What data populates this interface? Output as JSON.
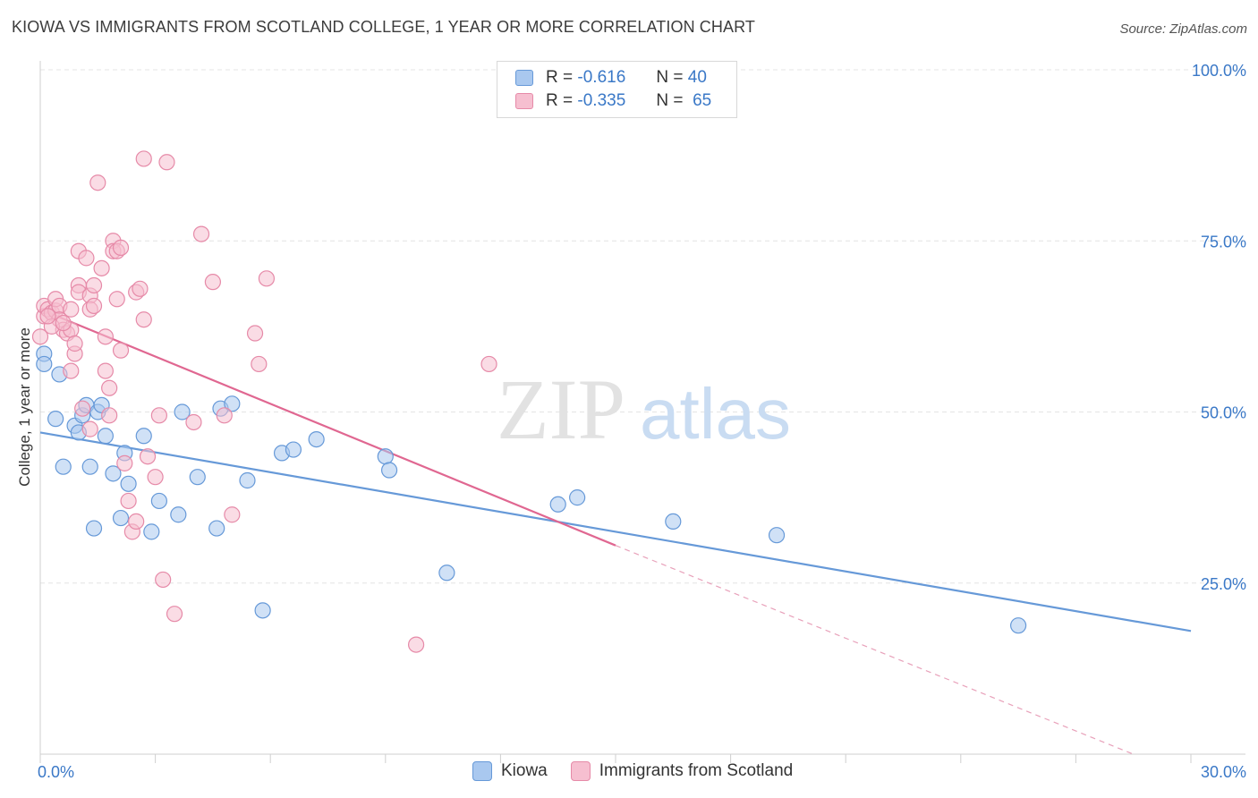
{
  "title": "KIOWA VS IMMIGRANTS FROM SCOTLAND COLLEGE, 1 YEAR OR MORE CORRELATION CHART",
  "source": "Source: ZipAtlas.com",
  "watermark": {
    "zip": "ZIP",
    "atlas": "atlas"
  },
  "legend": {
    "r_label": "R =",
    "n_label": "N =",
    "series": [
      {
        "name": "Kiowa",
        "r": "-0.616",
        "n": "40",
        "color": "#a9c8ef",
        "stroke": "#6699d8"
      },
      {
        "name": "Immigrants from Scotland",
        "r": "-0.335",
        "n": "65",
        "color": "#f6bfd0",
        "stroke": "#e68aa8"
      }
    ]
  },
  "chart_data": {
    "type": "scatter",
    "title": "KIOWA VS IMMIGRANTS FROM SCOTLAND COLLEGE, 1 YEAR OR MORE CORRELATION CHART",
    "xlabel": "",
    "ylabel": "College, 1 year or more",
    "xlim": [
      0,
      30
    ],
    "ylim": [
      0,
      100
    ],
    "x_tick_labels": {
      "left": "0.0%",
      "right": "30.0%"
    },
    "y_ticks": [
      25,
      50,
      75,
      100
    ],
    "y_tick_labels": [
      "25.0%",
      "50.0%",
      "75.0%",
      "100.0%"
    ],
    "grid": true,
    "series": [
      {
        "name": "Kiowa",
        "color": "#6699d8",
        "fill": "#a9c8ef",
        "trend": {
          "x0": 0,
          "y0": 47.0,
          "x1": 30,
          "y1": 18.0,
          "dashed_to": null
        },
        "points": [
          [
            0.1,
            58.5
          ],
          [
            0.1,
            57.0
          ],
          [
            0.5,
            55.5
          ],
          [
            0.4,
            49.0
          ],
          [
            0.9,
            48.0
          ],
          [
            1.0,
            47.0
          ],
          [
            1.1,
            49.5
          ],
          [
            1.2,
            51.0
          ],
          [
            1.5,
            50.0
          ],
          [
            1.6,
            51.0
          ],
          [
            1.7,
            46.5
          ],
          [
            2.7,
            46.5
          ],
          [
            3.7,
            50.0
          ],
          [
            4.7,
            50.5
          ],
          [
            5.0,
            51.2
          ],
          [
            2.2,
            44.0
          ],
          [
            0.6,
            42.0
          ],
          [
            1.3,
            42.0
          ],
          [
            1.9,
            41.0
          ],
          [
            2.3,
            39.5
          ],
          [
            4.1,
            40.5
          ],
          [
            5.4,
            40.0
          ],
          [
            6.3,
            44.0
          ],
          [
            6.6,
            44.5
          ],
          [
            7.2,
            46.0
          ],
          [
            9.0,
            43.5
          ],
          [
            9.1,
            41.5
          ],
          [
            3.1,
            37.0
          ],
          [
            3.6,
            35.0
          ],
          [
            2.1,
            34.5
          ],
          [
            1.4,
            33.0
          ],
          [
            2.9,
            32.5
          ],
          [
            4.6,
            33.0
          ],
          [
            13.5,
            36.5
          ],
          [
            14.0,
            37.5
          ],
          [
            16.5,
            34.0
          ],
          [
            19.2,
            32.0
          ],
          [
            10.6,
            26.5
          ],
          [
            5.8,
            21.0
          ],
          [
            25.5,
            18.8
          ]
        ]
      },
      {
        "name": "Immigrants from Scotland",
        "color": "#e06791",
        "fill": "#f6bfd0",
        "trend": {
          "x0": 0,
          "y0": 65.0,
          "x1": 15,
          "y1": 30.5,
          "dashed_x1": 28.5,
          "dashed_y1": 0.0
        },
        "points": [
          [
            0.0,
            61.0
          ],
          [
            0.1,
            64.0
          ],
          [
            0.1,
            65.5
          ],
          [
            0.2,
            65.0
          ],
          [
            0.3,
            64.5
          ],
          [
            0.4,
            64.8
          ],
          [
            0.4,
            66.5
          ],
          [
            0.5,
            65.5
          ],
          [
            0.5,
            63.5
          ],
          [
            0.6,
            62.0
          ],
          [
            0.7,
            61.5
          ],
          [
            0.8,
            62.0
          ],
          [
            0.8,
            65.0
          ],
          [
            0.9,
            58.5
          ],
          [
            0.8,
            56.0
          ],
          [
            1.0,
            68.5
          ],
          [
            1.0,
            67.5
          ],
          [
            1.0,
            73.5
          ],
          [
            1.2,
            72.5
          ],
          [
            1.3,
            67.0
          ],
          [
            1.3,
            65.0
          ],
          [
            1.4,
            68.5
          ],
          [
            1.4,
            65.5
          ],
          [
            1.5,
            83.5
          ],
          [
            1.6,
            71.0
          ],
          [
            1.7,
            61.0
          ],
          [
            1.7,
            56.0
          ],
          [
            1.8,
            53.5
          ],
          [
            1.8,
            49.5
          ],
          [
            1.9,
            75.0
          ],
          [
            1.9,
            73.5
          ],
          [
            2.0,
            73.5
          ],
          [
            2.1,
            74.0
          ],
          [
            2.0,
            66.5
          ],
          [
            2.1,
            59.0
          ],
          [
            2.2,
            42.5
          ],
          [
            2.3,
            37.0
          ],
          [
            2.4,
            32.5
          ],
          [
            2.5,
            34.0
          ],
          [
            2.5,
            67.5
          ],
          [
            2.6,
            68.0
          ],
          [
            2.7,
            63.5
          ],
          [
            2.7,
            87.0
          ],
          [
            2.8,
            43.5
          ],
          [
            3.0,
            40.5
          ],
          [
            3.1,
            49.5
          ],
          [
            3.2,
            25.5
          ],
          [
            3.3,
            86.5
          ],
          [
            3.5,
            20.5
          ],
          [
            4.0,
            48.5
          ],
          [
            4.2,
            76.0
          ],
          [
            4.5,
            69.0
          ],
          [
            4.8,
            49.5
          ],
          [
            5.0,
            35.0
          ],
          [
            5.6,
            61.5
          ],
          [
            5.7,
            57.0
          ],
          [
            5.9,
            69.5
          ],
          [
            9.8,
            16.0
          ],
          [
            11.7,
            57.0
          ],
          [
            0.3,
            62.5
          ],
          [
            0.6,
            63.0
          ],
          [
            1.1,
            50.5
          ],
          [
            1.3,
            47.5
          ],
          [
            0.9,
            60.0
          ],
          [
            0.2,
            64.0
          ]
        ]
      }
    ]
  }
}
